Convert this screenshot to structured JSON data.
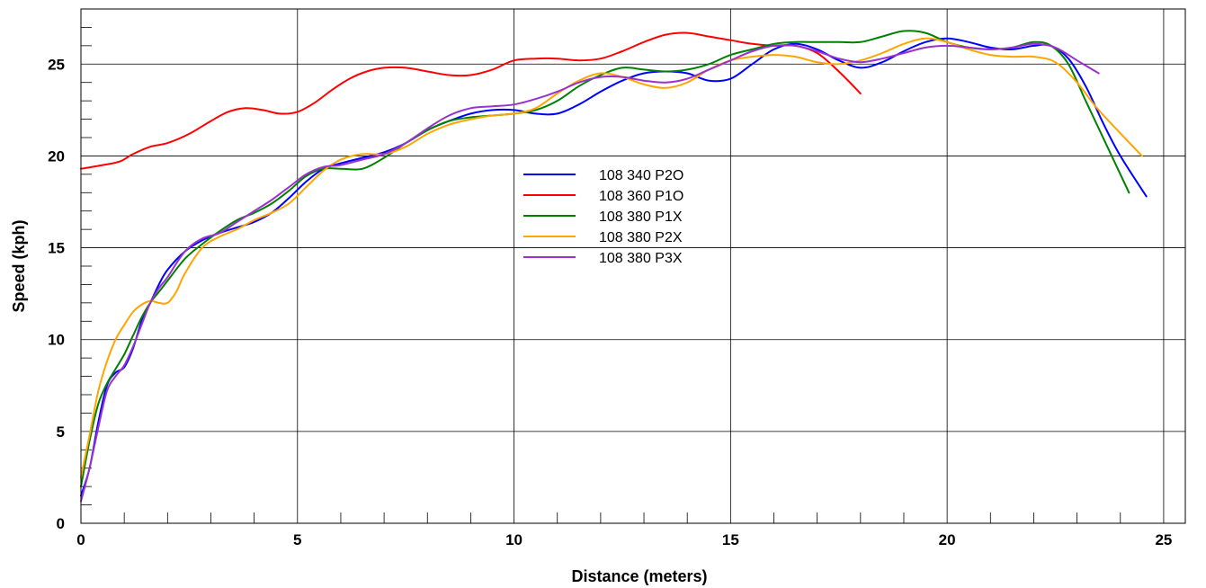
{
  "chart_data": {
    "type": "line",
    "title": "",
    "xlabel": "Distance (meters)",
    "ylabel": "Speed (kph)",
    "xlim": [
      0,
      25.5
    ],
    "ylim": [
      0,
      28
    ],
    "xticks": [
      0,
      5,
      10,
      15,
      20,
      25
    ],
    "yticks": [
      0,
      5,
      10,
      15,
      20,
      25
    ],
    "grid": true,
    "legend_position": "center",
    "series": [
      {
        "name": "108 340 P2O",
        "color": "#0000ff",
        "points": [
          [
            0,
            1.5
          ],
          [
            0.2,
            3
          ],
          [
            0.4,
            5.5
          ],
          [
            0.6,
            7.5
          ],
          [
            0.8,
            8.2
          ],
          [
            1.0,
            8.5
          ],
          [
            1.2,
            9.5
          ],
          [
            1.4,
            11
          ],
          [
            1.6,
            12
          ],
          [
            1.8,
            13
          ],
          [
            2.0,
            13.8
          ],
          [
            2.4,
            14.8
          ],
          [
            2.8,
            15.4
          ],
          [
            3.2,
            15.8
          ],
          [
            3.6,
            16.1
          ],
          [
            4.0,
            16.4
          ],
          [
            4.4,
            16.9
          ],
          [
            4.8,
            17.7
          ],
          [
            5.2,
            18.6
          ],
          [
            5.6,
            19.3
          ],
          [
            6.0,
            19.6
          ],
          [
            6.5,
            19.9
          ],
          [
            7.0,
            20.2
          ],
          [
            7.5,
            20.7
          ],
          [
            8.0,
            21.4
          ],
          [
            8.5,
            21.9
          ],
          [
            9.0,
            22.3
          ],
          [
            9.5,
            22.5
          ],
          [
            10.0,
            22.5
          ],
          [
            10.5,
            22.3
          ],
          [
            11.0,
            22.3
          ],
          [
            11.5,
            22.8
          ],
          [
            12.0,
            23.5
          ],
          [
            12.5,
            24.1
          ],
          [
            13.0,
            24.5
          ],
          [
            13.5,
            24.6
          ],
          [
            14.0,
            24.5
          ],
          [
            14.5,
            24.1
          ],
          [
            15.0,
            24.2
          ],
          [
            15.5,
            25.0
          ],
          [
            16.0,
            25.8
          ],
          [
            16.5,
            26.1
          ],
          [
            17.0,
            25.8
          ],
          [
            17.5,
            25.2
          ],
          [
            18.0,
            24.8
          ],
          [
            18.5,
            25.1
          ],
          [
            19.0,
            25.7
          ],
          [
            19.5,
            26.2
          ],
          [
            20.0,
            26.4
          ],
          [
            20.5,
            26.2
          ],
          [
            21.0,
            25.9
          ],
          [
            21.5,
            25.8
          ],
          [
            22.0,
            26.0
          ],
          [
            22.4,
            26.0
          ],
          [
            22.8,
            25.3
          ],
          [
            23.2,
            23.8
          ],
          [
            23.6,
            21.8
          ],
          [
            24.0,
            20.0
          ],
          [
            24.6,
            17.8
          ]
        ]
      },
      {
        "name": "108 360 P1O",
        "color": "#ff0000",
        "points": [
          [
            0,
            19.3
          ],
          [
            0.5,
            19.5
          ],
          [
            0.9,
            19.7
          ],
          [
            1.2,
            20.1
          ],
          [
            1.6,
            20.5
          ],
          [
            2.0,
            20.7
          ],
          [
            2.5,
            21.2
          ],
          [
            3.0,
            21.9
          ],
          [
            3.4,
            22.4
          ],
          [
            3.8,
            22.6
          ],
          [
            4.2,
            22.5
          ],
          [
            4.6,
            22.3
          ],
          [
            5.0,
            22.4
          ],
          [
            5.4,
            22.9
          ],
          [
            5.8,
            23.6
          ],
          [
            6.2,
            24.2
          ],
          [
            6.6,
            24.6
          ],
          [
            7.0,
            24.8
          ],
          [
            7.5,
            24.8
          ],
          [
            8.0,
            24.6
          ],
          [
            8.5,
            24.4
          ],
          [
            9.0,
            24.4
          ],
          [
            9.5,
            24.7
          ],
          [
            10.0,
            25.2
          ],
          [
            10.5,
            25.3
          ],
          [
            11.0,
            25.3
          ],
          [
            11.5,
            25.2
          ],
          [
            12.0,
            25.3
          ],
          [
            12.5,
            25.7
          ],
          [
            13.0,
            26.2
          ],
          [
            13.5,
            26.6
          ],
          [
            14.0,
            26.7
          ],
          [
            14.5,
            26.5
          ],
          [
            15.0,
            26.3
          ],
          [
            15.5,
            26.1
          ],
          [
            16.0,
            26.0
          ],
          [
            16.5,
            26.0
          ],
          [
            17.0,
            25.6
          ],
          [
            17.5,
            24.6
          ],
          [
            18.0,
            23.4
          ]
        ]
      },
      {
        "name": "108 380 P1X",
        "color": "#008000",
        "points": [
          [
            0,
            2
          ],
          [
            0.2,
            4.5
          ],
          [
            0.4,
            6.5
          ],
          [
            0.6,
            7.6
          ],
          [
            0.8,
            8.4
          ],
          [
            1.0,
            9.2
          ],
          [
            1.2,
            10.2
          ],
          [
            1.4,
            11.2
          ],
          [
            1.6,
            12
          ],
          [
            1.8,
            12.6
          ],
          [
            2.0,
            13.2
          ],
          [
            2.4,
            14.4
          ],
          [
            2.8,
            15.2
          ],
          [
            3.2,
            15.9
          ],
          [
            3.6,
            16.5
          ],
          [
            4.0,
            16.9
          ],
          [
            4.4,
            17.4
          ],
          [
            4.8,
            18.1
          ],
          [
            5.2,
            18.9
          ],
          [
            5.6,
            19.3
          ],
          [
            6.0,
            19.3
          ],
          [
            6.5,
            19.3
          ],
          [
            7.0,
            19.9
          ],
          [
            7.5,
            20.7
          ],
          [
            8.0,
            21.4
          ],
          [
            8.5,
            21.9
          ],
          [
            9.0,
            22.1
          ],
          [
            9.5,
            22.2
          ],
          [
            10.0,
            22.3
          ],
          [
            10.5,
            22.5
          ],
          [
            11.0,
            23.0
          ],
          [
            11.5,
            23.8
          ],
          [
            12.0,
            24.4
          ],
          [
            12.5,
            24.8
          ],
          [
            13.0,
            24.7
          ],
          [
            13.5,
            24.6
          ],
          [
            14.0,
            24.7
          ],
          [
            14.5,
            25.0
          ],
          [
            15.0,
            25.5
          ],
          [
            15.5,
            25.8
          ],
          [
            16.0,
            26.1
          ],
          [
            16.5,
            26.2
          ],
          [
            17.0,
            26.2
          ],
          [
            17.5,
            26.2
          ],
          [
            18.0,
            26.2
          ],
          [
            18.5,
            26.5
          ],
          [
            19.0,
            26.8
          ],
          [
            19.5,
            26.7
          ],
          [
            20.0,
            26.2
          ],
          [
            20.5,
            25.9
          ],
          [
            21.0,
            25.8
          ],
          [
            21.5,
            25.9
          ],
          [
            22.0,
            26.2
          ],
          [
            22.4,
            26.0
          ],
          [
            22.8,
            25.0
          ],
          [
            23.2,
            23.0
          ],
          [
            23.6,
            21.0
          ],
          [
            24.2,
            18.0
          ]
        ]
      },
      {
        "name": "108 380 P2X",
        "color": "#ffa500",
        "points": [
          [
            0,
            2.5
          ],
          [
            0.2,
            4.8
          ],
          [
            0.4,
            7.2
          ],
          [
            0.6,
            8.8
          ],
          [
            0.8,
            10.0
          ],
          [
            1.0,
            10.8
          ],
          [
            1.2,
            11.5
          ],
          [
            1.4,
            11.9
          ],
          [
            1.6,
            12.1
          ],
          [
            1.8,
            12.0
          ],
          [
            2.0,
            12.0
          ],
          [
            2.2,
            12.6
          ],
          [
            2.4,
            13.6
          ],
          [
            2.8,
            15.0
          ],
          [
            3.2,
            15.6
          ],
          [
            3.6,
            16.0
          ],
          [
            4.0,
            16.5
          ],
          [
            4.4,
            16.9
          ],
          [
            4.8,
            17.4
          ],
          [
            5.2,
            18.3
          ],
          [
            5.6,
            19.2
          ],
          [
            6.0,
            19.8
          ],
          [
            6.5,
            20.1
          ],
          [
            7.0,
            20.1
          ],
          [
            7.5,
            20.5
          ],
          [
            8.0,
            21.2
          ],
          [
            8.5,
            21.7
          ],
          [
            9.0,
            22.0
          ],
          [
            9.5,
            22.2
          ],
          [
            10.0,
            22.3
          ],
          [
            10.5,
            22.6
          ],
          [
            11.0,
            23.4
          ],
          [
            11.5,
            24.1
          ],
          [
            12.0,
            24.5
          ],
          [
            12.5,
            24.3
          ],
          [
            13.0,
            23.9
          ],
          [
            13.5,
            23.7
          ],
          [
            14.0,
            24.0
          ],
          [
            14.5,
            24.7
          ],
          [
            15.0,
            25.2
          ],
          [
            15.5,
            25.4
          ],
          [
            16.0,
            25.5
          ],
          [
            16.5,
            25.4
          ],
          [
            17.0,
            25.1
          ],
          [
            17.5,
            25.0
          ],
          [
            18.0,
            25.2
          ],
          [
            18.5,
            25.6
          ],
          [
            19.0,
            26.1
          ],
          [
            19.5,
            26.4
          ],
          [
            20.0,
            26.2
          ],
          [
            20.5,
            25.8
          ],
          [
            21.0,
            25.5
          ],
          [
            21.5,
            25.4
          ],
          [
            22.0,
            25.4
          ],
          [
            22.5,
            25.1
          ],
          [
            23.0,
            24.0
          ],
          [
            23.5,
            22.5
          ],
          [
            24.5,
            20.0
          ]
        ]
      },
      {
        "name": "108 380 P3X",
        "color": "#9932cc",
        "points": [
          [
            0,
            1.2
          ],
          [
            0.2,
            3
          ],
          [
            0.4,
            5.2
          ],
          [
            0.6,
            7.2
          ],
          [
            0.8,
            8.0
          ],
          [
            1.0,
            8.6
          ],
          [
            1.2,
            9.6
          ],
          [
            1.4,
            10.8
          ],
          [
            1.6,
            12
          ],
          [
            1.8,
            12.8
          ],
          [
            2.0,
            13.4
          ],
          [
            2.4,
            14.8
          ],
          [
            2.8,
            15.5
          ],
          [
            3.2,
            15.8
          ],
          [
            3.6,
            16.4
          ],
          [
            4.0,
            17.0
          ],
          [
            4.4,
            17.6
          ],
          [
            4.8,
            18.3
          ],
          [
            5.2,
            19.0
          ],
          [
            5.6,
            19.4
          ],
          [
            6.0,
            19.5
          ],
          [
            6.5,
            19.8
          ],
          [
            7.0,
            20.1
          ],
          [
            7.5,
            20.7
          ],
          [
            8.0,
            21.5
          ],
          [
            8.5,
            22.2
          ],
          [
            9.0,
            22.6
          ],
          [
            9.5,
            22.7
          ],
          [
            10.0,
            22.8
          ],
          [
            10.5,
            23.1
          ],
          [
            11.0,
            23.5
          ],
          [
            11.5,
            24.0
          ],
          [
            12.0,
            24.3
          ],
          [
            12.5,
            24.3
          ],
          [
            13.0,
            24.1
          ],
          [
            13.5,
            24.0
          ],
          [
            14.0,
            24.2
          ],
          [
            14.5,
            24.7
          ],
          [
            15.0,
            25.2
          ],
          [
            15.5,
            25.7
          ],
          [
            16.0,
            26.0
          ],
          [
            16.5,
            26.0
          ],
          [
            17.0,
            25.7
          ],
          [
            17.5,
            25.3
          ],
          [
            18.0,
            25.1
          ],
          [
            18.5,
            25.3
          ],
          [
            19.0,
            25.6
          ],
          [
            19.5,
            25.9
          ],
          [
            20.0,
            26.0
          ],
          [
            20.5,
            25.9
          ],
          [
            21.0,
            25.8
          ],
          [
            21.5,
            25.9
          ],
          [
            22.0,
            26.1
          ],
          [
            22.5,
            25.9
          ],
          [
            23.0,
            25.2
          ],
          [
            23.5,
            24.5
          ]
        ]
      }
    ]
  }
}
